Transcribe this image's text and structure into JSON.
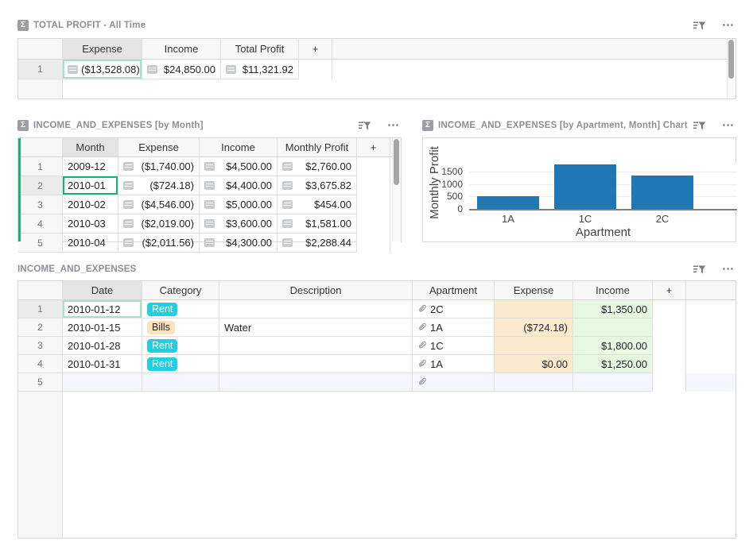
{
  "colors": {
    "active_cursor": "#16B378",
    "inactive_cursor": "#A6E1C9",
    "bar_blue": "#1F77B4",
    "chip_rent_bg": "#1FD0E0",
    "chip_bills_bg": "#FCE3BC",
    "expense_column_bg": "#FCEACF",
    "income_column_bg": "#E7F8E2",
    "new_row_bg": "#F5F5FF"
  },
  "icons": {
    "sigma": "Σ",
    "menu": "⋯"
  },
  "summary": {
    "title": "TOTAL PROFIT - All Time",
    "headers": {
      "expense": "Expense",
      "income": "Income",
      "total_profit": "Total Profit",
      "add": "+"
    },
    "row": {
      "num": "1",
      "expense": "($13,528.08)",
      "income": "$24,850.00",
      "total_profit": "$11,321.92"
    }
  },
  "by_month": {
    "title": "INCOME_AND_EXPENSES [by Month]",
    "headers": {
      "month": "Month",
      "expense": "Expense",
      "income": "Income",
      "profit": "Monthly Profit",
      "add": "+"
    },
    "rows": [
      {
        "num": "1",
        "month": "2009-12",
        "expense": "($1,740.00)",
        "income": "$4,500.00",
        "profit": "$2,760.00"
      },
      {
        "num": "2",
        "month": "2010-01",
        "expense": "($724.18)",
        "income": "$4,400.00",
        "profit": "$3,675.82"
      },
      {
        "num": "3",
        "month": "2010-02",
        "expense": "($4,546.00)",
        "income": "$5,000.00",
        "profit": "$454.00"
      },
      {
        "num": "4",
        "month": "2010-03",
        "expense": "($2,019.00)",
        "income": "$3,600.00",
        "profit": "$1,581.00"
      },
      {
        "num": "5",
        "month": "2010-04",
        "expense": "($2,011.56)",
        "income": "$4,300.00",
        "profit": "$2,288.44"
      }
    ]
  },
  "chart": {
    "title": "INCOME_AND_EXPENSES [by Apartment, Month] Chart"
  },
  "chart_data": {
    "type": "bar",
    "categories": [
      "1A",
      "1C",
      "2C"
    ],
    "values": [
      525.82,
      1800,
      1350
    ],
    "title": "INCOME_AND_EXPENSES [by Apartment, Month] Chart",
    "xlabel": "Apartment",
    "ylabel": "Monthly Profit",
    "yticks": [
      0,
      500,
      1000,
      1500
    ],
    "ylim": [
      0,
      1820
    ],
    "grid": true,
    "legend": false,
    "bar_color": "#1F77B4"
  },
  "detail": {
    "title": "INCOME_AND_EXPENSES",
    "headers": {
      "date": "Date",
      "category": "Category",
      "description": "Description",
      "apartment": "Apartment",
      "expense": "Expense",
      "income": "Income",
      "add": "+"
    },
    "rows": [
      {
        "num": "1",
        "date": "2010-01-12",
        "category": "Rent",
        "description": "",
        "apartment": "2C",
        "expense": "",
        "income": "$1,350.00"
      },
      {
        "num": "2",
        "date": "2010-01-15",
        "category": "Bills",
        "description": "Water",
        "apartment": "1A",
        "expense": "($724.18)",
        "income": ""
      },
      {
        "num": "3",
        "date": "2010-01-28",
        "category": "Rent",
        "description": "",
        "apartment": "1C",
        "expense": "",
        "income": "$1,800.00"
      },
      {
        "num": "4",
        "date": "2010-01-31",
        "category": "Rent",
        "description": "",
        "apartment": "1A",
        "expense": "$0.00",
        "income": "$1,250.00"
      },
      {
        "num": "5",
        "date": "",
        "category": "",
        "description": "",
        "apartment": "",
        "expense": "",
        "income": ""
      }
    ]
  }
}
